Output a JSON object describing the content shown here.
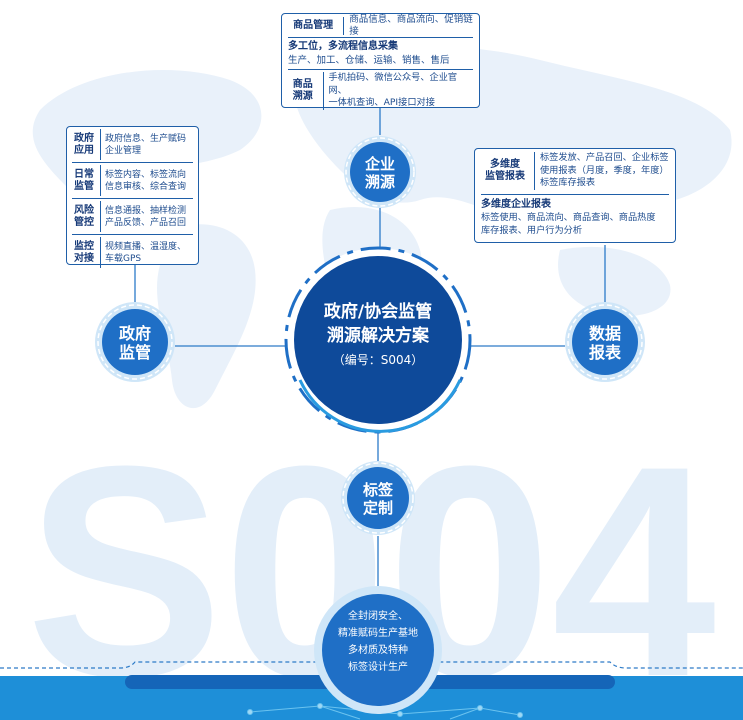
{
  "center": {
    "line1": "政府/协会监管",
    "line2": "溯源解决方案",
    "line3": "（编号：S004）"
  },
  "watermark": "S004",
  "nodes": {
    "enterprise": {
      "line1": "企业",
      "line2": "溯源"
    },
    "government": {
      "line1": "政府",
      "line2": "监管"
    },
    "data": {
      "line1": "数据",
      "line2": "报表"
    },
    "label": {
      "line1": "标签",
      "line2": "定制"
    },
    "bottom": {
      "line1": "全封闭安全、",
      "line2": "精准赋码生产基地",
      "line3": "多材质及特种",
      "line4": "标签设计生产"
    }
  },
  "top_box": {
    "row1_label": "商品管理",
    "row1_text": "商品信息、商品流向、促销链接",
    "row2_title": "多工位，多流程信息采集",
    "row2_text": "生产、加工、仓储、运输、销售、售后",
    "row3_label_1": "商品",
    "row3_label_2": "溯源",
    "row3_text_1": "手机拍码、微信公众号、企业官网、",
    "row3_text_2": "一体机查询、API接口对接"
  },
  "left_box": {
    "rows": [
      {
        "label1": "政府",
        "label2": "应用",
        "text1": "政府信息、生产赋码",
        "text2": "企业管理"
      },
      {
        "label1": "日常",
        "label2": "监管",
        "text1": "标签内容、标签流向",
        "text2": "信息审核、综合查询"
      },
      {
        "label1": "风险",
        "label2": "管控",
        "text1": "信息通报、抽样检测",
        "text2": "产品反馈、产品召回"
      },
      {
        "label1": "监控",
        "label2": "对接",
        "text1": "视频直播、温湿度、",
        "text2": "车载GPS"
      }
    ]
  },
  "right_box": {
    "label1": "多维度",
    "label2": "监管报表",
    "text1": "标签发放、产品召回、企业标签",
    "text2": "使用报表（月度，季度，年度）",
    "text3": "标签库存报表",
    "title2": "多维度企业报表",
    "text4": "标签使用、商品流向、商品查询、商品热度",
    "text5": "库存报表、用户行为分析"
  },
  "colors": {
    "primary": "#1f6fc6",
    "dark": "#0e4a9a",
    "light_blue": "#2a9be0",
    "ring": "#cfe6f8",
    "band": "#1e8fd8"
  }
}
